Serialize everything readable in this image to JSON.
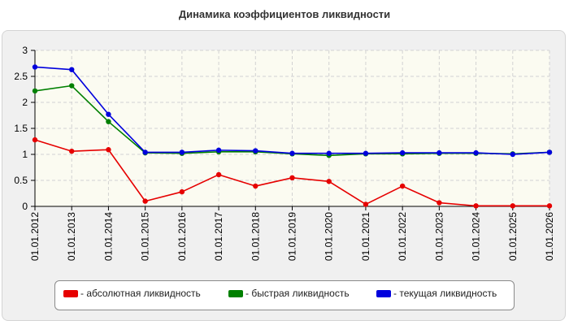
{
  "chart_data": {
    "type": "line",
    "title": "Динамика коэффициентов ликвидности",
    "x": [
      "01.01.2012",
      "01.01.2013",
      "01.01.2014",
      "01.01.2015",
      "01.01.2016",
      "01.01.2017",
      "01.01.2018",
      "01.01.2019",
      "01.01.2020",
      "01.01.2021",
      "01.01.2022",
      "01.01.2023",
      "01.01.2024",
      "01.01.2025",
      "01.01.2026"
    ],
    "ylim": [
      0,
      3
    ],
    "yticks": [
      "0",
      "0.5",
      "1",
      "1.5",
      "2",
      "2.5",
      "3"
    ],
    "grid": true,
    "legend_position": "bottom",
    "series": [
      {
        "name": "- абсолютная ликвидность",
        "color": "#e60000",
        "values": [
          1.28,
          1.06,
          1.09,
          0.1,
          0.28,
          0.61,
          0.39,
          0.55,
          0.48,
          0.04,
          0.39,
          0.07,
          0.01,
          0.01,
          0.01
        ]
      },
      {
        "name": "- быстрая ликвидность",
        "color": "#008000",
        "values": [
          2.22,
          2.32,
          1.63,
          1.03,
          1.02,
          1.05,
          1.05,
          1.01,
          0.98,
          1.01,
          1.01,
          1.02,
          1.02,
          1.01,
          1.04
        ]
      },
      {
        "name": "- текущая ликвидность",
        "color": "#0000dd",
        "values": [
          2.68,
          2.63,
          1.77,
          1.04,
          1.04,
          1.08,
          1.07,
          1.02,
          1.02,
          1.02,
          1.03,
          1.03,
          1.03,
          1.0,
          1.04
        ]
      }
    ]
  }
}
